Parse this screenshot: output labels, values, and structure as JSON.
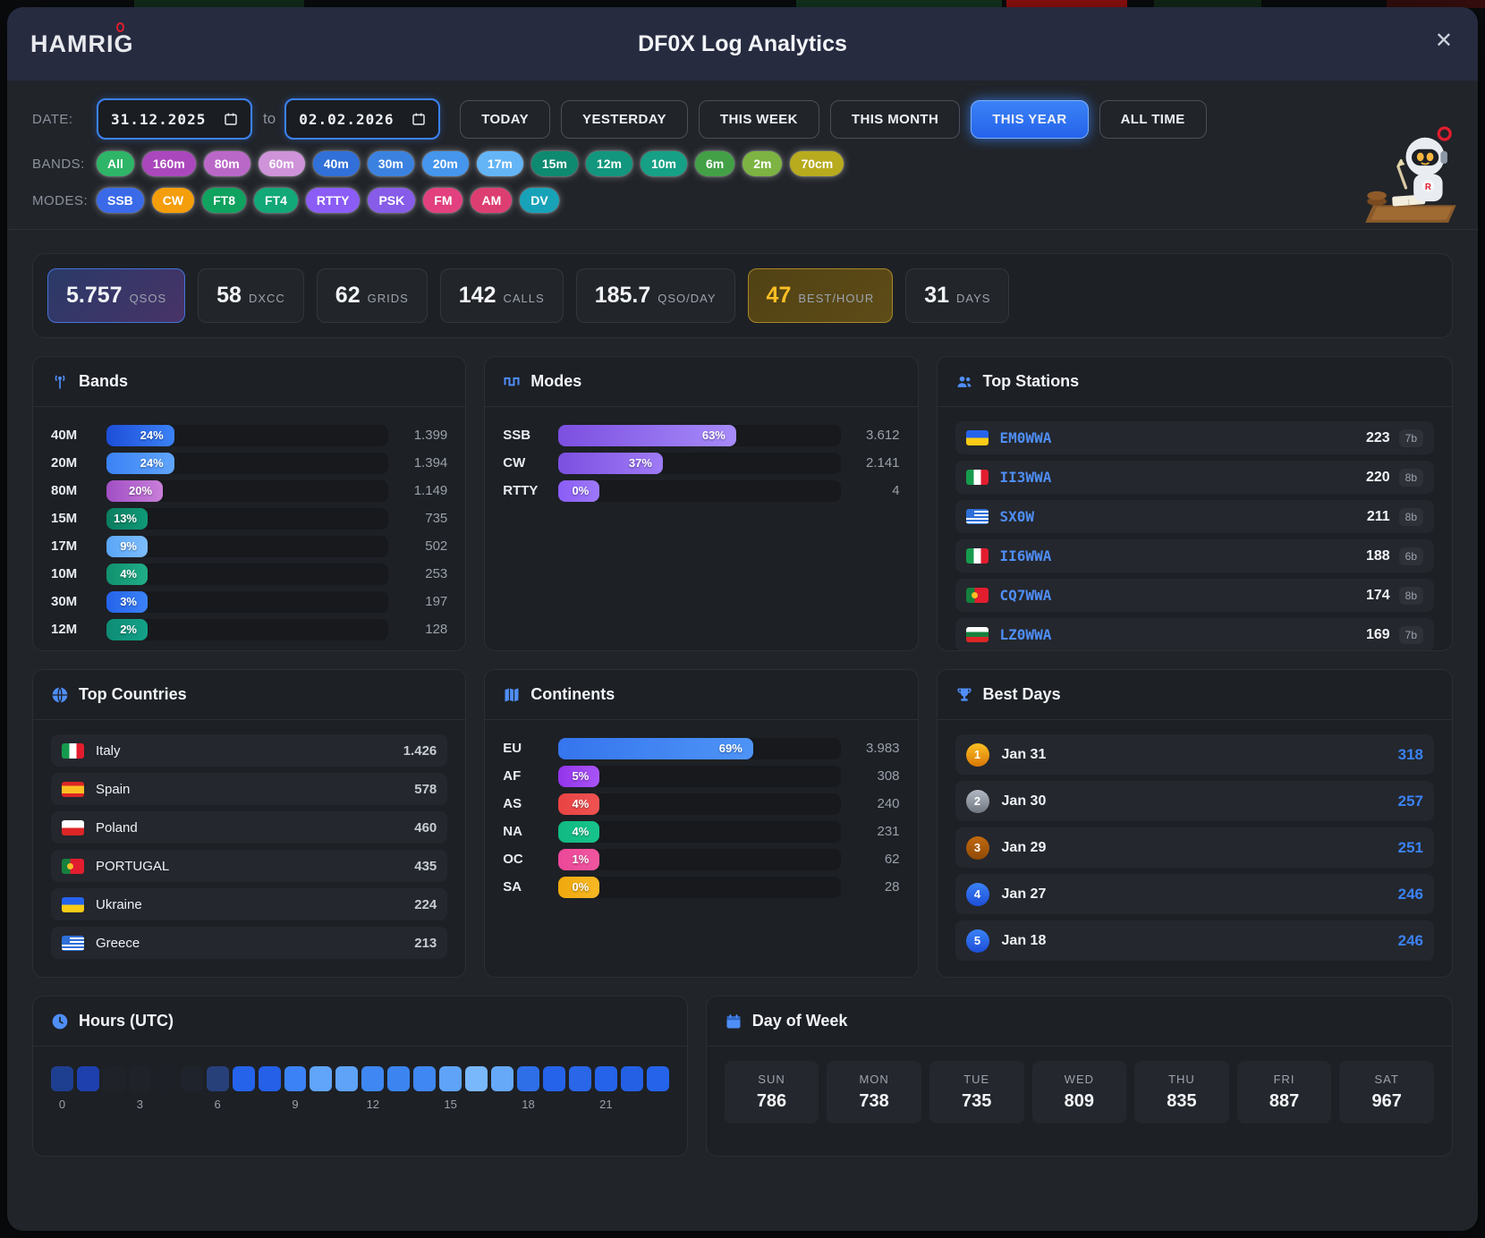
{
  "header": {
    "logo": "HAMRIG",
    "title": "DF0X Log Analytics",
    "close": "✕"
  },
  "filters": {
    "date_label": "DATE:",
    "date_from": "31.12.2025",
    "to_word": "to",
    "date_to": "02.02.2026",
    "range_buttons": [
      {
        "label": "TODAY"
      },
      {
        "label": "YESTERDAY"
      },
      {
        "label": "THIS WEEK"
      },
      {
        "label": "THIS MONTH"
      },
      {
        "label": "THIS YEAR"
      },
      {
        "label": "ALL TIME"
      }
    ],
    "bands_label": "BANDS:",
    "bands": [
      {
        "label": "All",
        "color": "#2eb567"
      },
      {
        "label": "160m",
        "color": "#ab47bc"
      },
      {
        "label": "80m",
        "color": "#ba68c8"
      },
      {
        "label": "60m",
        "color": "#ce93d8"
      },
      {
        "label": "40m",
        "color": "#3070d8"
      },
      {
        "label": "30m",
        "color": "#3b82e0"
      },
      {
        "label": "20m",
        "color": "#4596ec"
      },
      {
        "label": "17m",
        "color": "#64b5f6"
      },
      {
        "label": "15m",
        "color": "#0e8a71"
      },
      {
        "label": "12m",
        "color": "#12967d"
      },
      {
        "label": "10m",
        "color": "#16a085"
      },
      {
        "label": "6m",
        "color": "#43a047"
      },
      {
        "label": "2m",
        "color": "#7cb342"
      },
      {
        "label": "70cm",
        "color": "#b8ab1e"
      }
    ],
    "modes_label": "MODES:",
    "modes": [
      {
        "label": "SSB",
        "color": "#3a6ae8"
      },
      {
        "label": "CW",
        "color": "#f59e0b"
      },
      {
        "label": "FT8",
        "color": "#10a25f"
      },
      {
        "label": "FT4",
        "color": "#12a878"
      },
      {
        "label": "RTTY",
        "color": "#8b5cf6"
      },
      {
        "label": "PSK",
        "color": "#875ce8"
      },
      {
        "label": "FM",
        "color": "#e2407f"
      },
      {
        "label": "AM",
        "color": "#dd3e72"
      },
      {
        "label": "DV",
        "color": "#17a2b8"
      }
    ]
  },
  "stats": [
    {
      "value": "5.757",
      "label": "QSOS"
    },
    {
      "value": "58",
      "label": "DXCC"
    },
    {
      "value": "62",
      "label": "GRIDS"
    },
    {
      "value": "142",
      "label": "CALLS"
    },
    {
      "value": "185.7",
      "label": "QSO/DAY"
    },
    {
      "value": "47",
      "label": "BEST/HOUR"
    },
    {
      "value": "31",
      "label": "DAYS"
    }
  ],
  "panels": {
    "bands": {
      "title": "Bands",
      "rows": [
        {
          "label": "40M",
          "pct": 24,
          "pct_label": "24%",
          "value": "1.399",
          "c1": "#1d4ed8",
          "c2": "#3b82f6"
        },
        {
          "label": "20M",
          "pct": 24,
          "pct_label": "24%",
          "value": "1.394",
          "c1": "#3b82f6",
          "c2": "#60a5fa"
        },
        {
          "label": "80M",
          "pct": 20,
          "pct_label": "20%",
          "value": "1.149",
          "c1": "#a14fc4",
          "c2": "#c97fd9"
        },
        {
          "label": "15M",
          "pct": 13,
          "pct_label": "13%",
          "value": "735",
          "c1": "#0b7d60",
          "c2": "#0f9a77"
        },
        {
          "label": "17M",
          "pct": 9,
          "pct_label": "9%",
          "value": "502",
          "c1": "#5aa6f8",
          "c2": "#7cbcfb"
        },
        {
          "label": "10M",
          "pct": 4,
          "pct_label": "4%",
          "value": "253",
          "c1": "#12916f",
          "c2": "#1fae87"
        },
        {
          "label": "30M",
          "pct": 3,
          "pct_label": "3%",
          "value": "197",
          "c1": "#2563eb",
          "c2": "#3b82f6"
        },
        {
          "label": "12M",
          "pct": 2,
          "pct_label": "2%",
          "value": "128",
          "c1": "#0e8c74",
          "c2": "#13a289"
        }
      ]
    },
    "modes": {
      "title": "Modes",
      "rows": [
        {
          "label": "SSB",
          "pct": 63,
          "pct_label": "63%",
          "value": "3.612",
          "c1": "#7c4fe0",
          "c2": "#a78bfa"
        },
        {
          "label": "CW",
          "pct": 37,
          "pct_label": "37%",
          "value": "2.141",
          "c1": "#7c4fe0",
          "c2": "#9f7bf7"
        },
        {
          "label": "RTTY",
          "pct": 0,
          "pct_label": "0%",
          "value": "4",
          "c1": "#8b5cf6",
          "c2": "#9d79f8"
        }
      ]
    },
    "top_stations": {
      "title": "Top Stations",
      "rows": [
        {
          "flag": "ukraine",
          "callsign": "EM0WWA",
          "value": "223",
          "badge": "7b"
        },
        {
          "flag": "italy",
          "callsign": "II3WWA",
          "value": "220",
          "badge": "8b"
        },
        {
          "flag": "greece",
          "callsign": "SX0W",
          "value": "211",
          "badge": "8b"
        },
        {
          "flag": "italy",
          "callsign": "II6WWA",
          "value": "188",
          "badge": "6b"
        },
        {
          "flag": "portugal",
          "callsign": "CQ7WWA",
          "value": "174",
          "badge": "8b"
        },
        {
          "flag": "bulgaria",
          "callsign": "LZ0WWA",
          "value": "169",
          "badge": "7b"
        }
      ]
    },
    "top_countries": {
      "title": "Top Countries",
      "rows": [
        {
          "flag": "italy",
          "name": "Italy",
          "value": "1.426"
        },
        {
          "flag": "spain",
          "name": "Spain",
          "value": "578"
        },
        {
          "flag": "poland",
          "name": "Poland",
          "value": "460"
        },
        {
          "flag": "portugal",
          "name": "PORTUGAL",
          "value": "435"
        },
        {
          "flag": "ukraine",
          "name": "Ukraine",
          "value": "224"
        },
        {
          "flag": "greece",
          "name": "Greece",
          "value": "213"
        }
      ]
    },
    "continents": {
      "title": "Continents",
      "rows": [
        {
          "label": "EU",
          "pct": 69,
          "pct_label": "69%",
          "value": "3.983",
          "c1": "#3575ee",
          "c2": "#4e94f6"
        },
        {
          "label": "AF",
          "pct": 5,
          "pct_label": "5%",
          "value": "308",
          "c1": "#9333ea",
          "c2": "#a855f7"
        },
        {
          "label": "AS",
          "pct": 4,
          "pct_label": "4%",
          "value": "240",
          "c1": "#e94343",
          "c2": "#f05252"
        },
        {
          "label": "NA",
          "pct": 4,
          "pct_label": "4%",
          "value": "231",
          "c1": "#10b981",
          "c2": "#17c48b"
        },
        {
          "label": "OC",
          "pct": 1,
          "pct_label": "1%",
          "value": "62",
          "c1": "#ec4899",
          "c2": "#f0569f"
        },
        {
          "label": "SA",
          "pct": 0,
          "pct_label": "0%",
          "value": "28",
          "c1": "#f0a80d",
          "c2": "#f7b824"
        }
      ]
    },
    "best_days": {
      "title": "Best Days",
      "rows": [
        {
          "rank": "1",
          "date": "Jan 31",
          "value": "318"
        },
        {
          "rank": "2",
          "date": "Jan 30",
          "value": "257"
        },
        {
          "rank": "3",
          "date": "Jan 29",
          "value": "251"
        },
        {
          "rank": "4",
          "date": "Jan 27",
          "value": "246"
        },
        {
          "rank": "5",
          "date": "Jan 18",
          "value": "246"
        }
      ]
    },
    "hours": {
      "title": "Hours (UTC)",
      "cells": [
        "#1e3f8f",
        "#1e40af",
        "#1f2329",
        "#1f2329",
        "#1d2127",
        "#1f232b",
        "#27407a",
        "#2563eb",
        "#2460e8",
        "#3b82f6",
        "#60a5fa",
        "#5ea3f8",
        "#3f87f2",
        "#3c84f0",
        "#3f87f2",
        "#5ea3f8",
        "#7ab8fc",
        "#66a9f8",
        "#2e6fe8",
        "#2563eb",
        "#2a66e8",
        "#2563eb",
        "#2360e4",
        "#2563eb"
      ],
      "ticks": [
        "0",
        "3",
        "6",
        "9",
        "12",
        "15",
        "18",
        "21"
      ]
    },
    "day_of_week": {
      "title": "Day of Week",
      "days": [
        {
          "label": "SUN",
          "value": "786"
        },
        {
          "label": "MON",
          "value": "738"
        },
        {
          "label": "TUE",
          "value": "735"
        },
        {
          "label": "WED",
          "value": "809"
        },
        {
          "label": "THU",
          "value": "835"
        },
        {
          "label": "FRI",
          "value": "887"
        },
        {
          "label": "SAT",
          "value": "967"
        }
      ]
    }
  }
}
